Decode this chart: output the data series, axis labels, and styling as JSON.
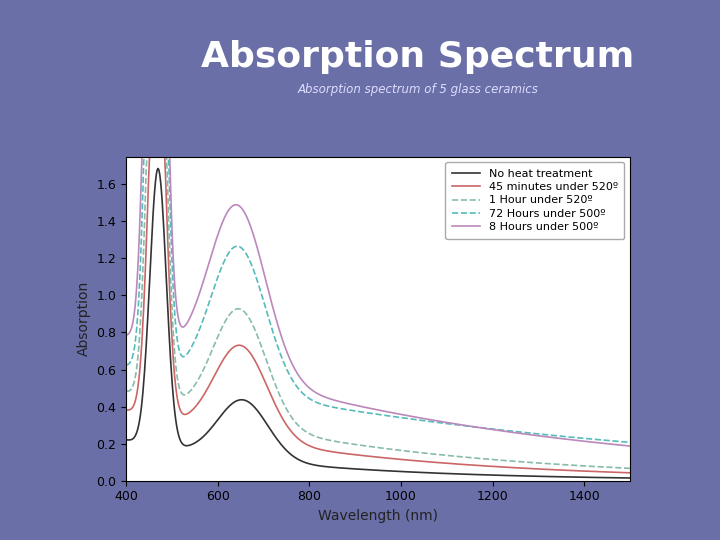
{
  "title": "Absorption Spectrum",
  "subtitle": "Absorption spectrum of 5 glass ceramics",
  "xlabel": "Wavelength (nm)",
  "ylabel": "Absorption",
  "xlim": [
    400,
    1500
  ],
  "ylim": [
    0.0,
    1.75
  ],
  "yticks": [
    0.0,
    0.2,
    0.4,
    0.6,
    0.8,
    1.0,
    1.2,
    1.4,
    1.6
  ],
  "xticks": [
    400,
    600,
    800,
    1000,
    1200,
    1400
  ],
  "bg_color": "#6b6fa8",
  "plot_bg": "#ffffff",
  "title_color": "#ffffff",
  "subtitle_color": "#ddddff",
  "legend_labels": [
    "No heat treatment",
    "45 minutes under 520º",
    "1 Hour under 520º",
    "72 Hours under 500º",
    "8 Hours under 500º"
  ],
  "line_colors": [
    "#333333",
    "#cc6666",
    "#88bbaa",
    "#55bbbb",
    "#bb88bb"
  ],
  "line_styles": [
    "solid",
    "solid",
    "dashed",
    "dashed",
    "solid"
  ],
  "line_widths": [
    1.2,
    1.2,
    1.2,
    1.2,
    1.2
  ]
}
